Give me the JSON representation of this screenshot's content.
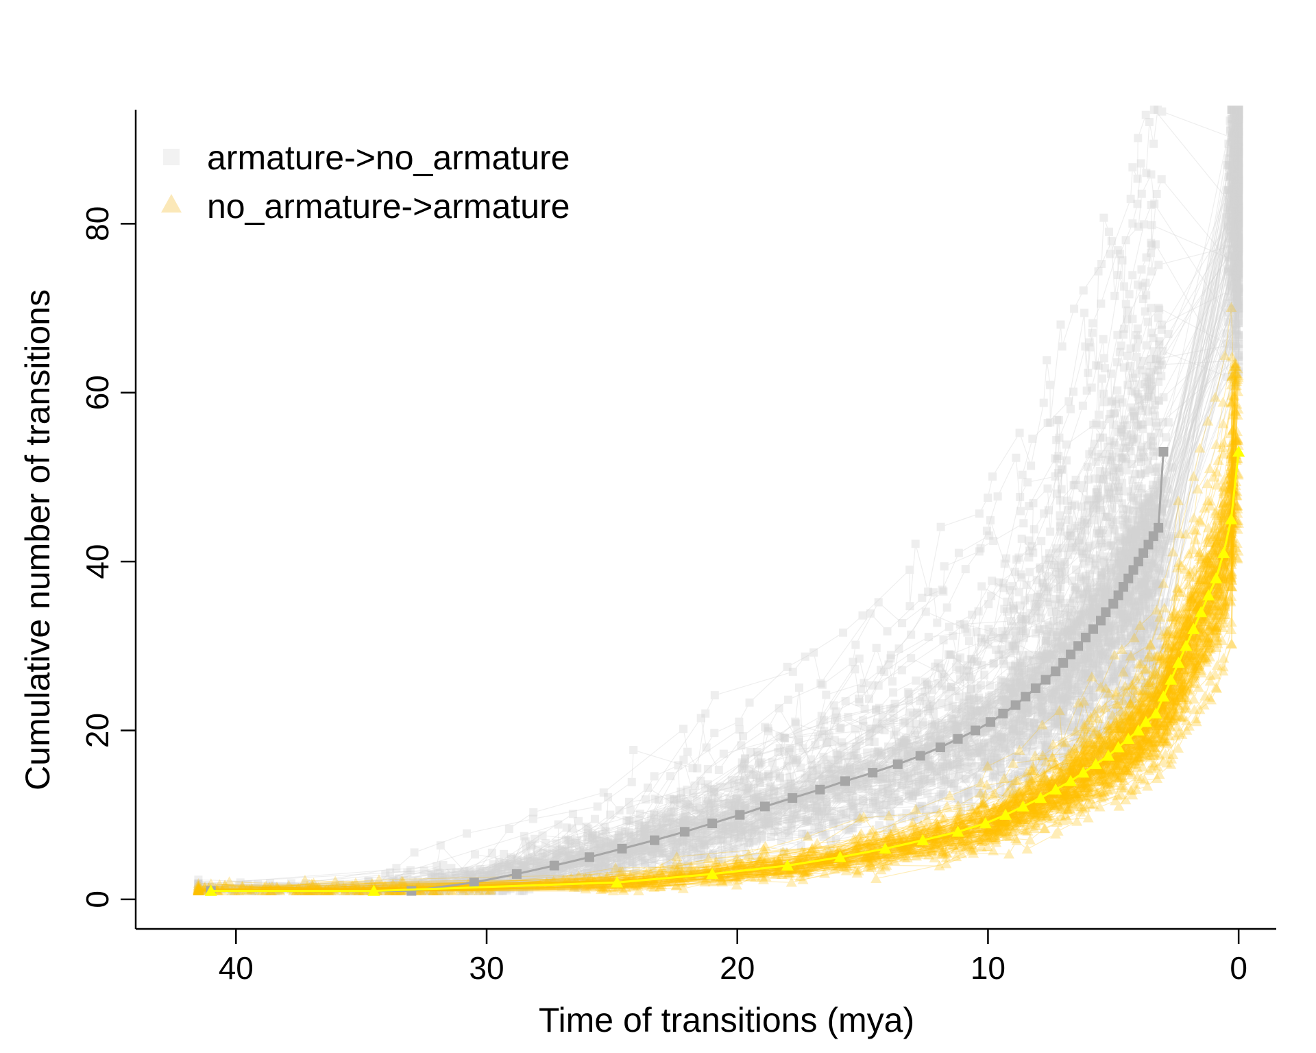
{
  "chart_data": {
    "type": "line",
    "title": "",
    "xlabel": "Time of transitions (mya)",
    "ylabel": "Cumulative number of transitions",
    "xlim": [
      44,
      -1.5
    ],
    "ylim": [
      -3.5,
      93.5
    ],
    "x_reversed": true,
    "x_ticks": [
      40,
      30,
      20,
      10,
      0
    ],
    "x_tick_labels": [
      "40",
      "30",
      "20",
      "10",
      "0"
    ],
    "y_ticks": [
      0,
      20,
      40,
      60,
      80
    ],
    "y_tick_labels": [
      "0",
      "20",
      "40",
      "60",
      "80"
    ],
    "grid": false,
    "legend": {
      "position": "top-left",
      "entries": [
        {
          "label": "armature->no_armature",
          "marker": "square",
          "color": "#f2f2f2"
        },
        {
          "label": "no_armature->armature",
          "marker": "triangle",
          "color": "#fbe8b8"
        }
      ]
    },
    "colors": {
      "gray_sim": "#d3d3d3",
      "gray_mean": "#a6a6a6",
      "yellow_sim": "#ffc000",
      "yellow_mean": "#ffff00"
    },
    "simulations_per_series": 100,
    "series": [
      {
        "name": "armature->no_armature",
        "marker": "square",
        "color": "#a6a6a6",
        "x": [
          41.0,
          33.0,
          30.5,
          28.8,
          27.3,
          25.9,
          24.6,
          23.3,
          22.1,
          21.0,
          19.9,
          18.9,
          17.8,
          16.7,
          15.7,
          14.6,
          13.6,
          12.7,
          11.9,
          11.2,
          10.5,
          9.9,
          9.4,
          8.9,
          8.5,
          8.1,
          7.7,
          7.3,
          7.0,
          6.7,
          6.4,
          6.1,
          5.8,
          5.5,
          5.3,
          5.0,
          4.8,
          4.6,
          4.4,
          4.2,
          4.0,
          3.8,
          3.6,
          3.4,
          3.2,
          3.0
        ],
        "y": [
          1,
          1,
          2,
          3,
          4,
          5,
          6,
          7,
          8,
          9,
          10,
          11,
          12,
          13,
          14,
          15,
          16,
          17,
          18,
          19,
          20,
          21,
          22,
          23,
          24,
          25,
          26,
          27,
          28,
          29,
          30,
          31,
          32,
          33,
          34,
          35,
          36,
          37,
          38,
          39,
          40,
          41,
          42,
          43,
          44,
          53
        ]
      },
      {
        "name": "no_armature->armature",
        "marker": "triangle",
        "color": "#ffff00",
        "x": [
          41.0,
          34.5,
          24.8,
          21.0,
          18.0,
          15.9,
          14.1,
          12.6,
          11.2,
          10.1,
          9.3,
          8.6,
          7.9,
          7.3,
          6.7,
          6.2,
          5.7,
          5.2,
          4.8,
          4.4,
          4.0,
          3.7,
          3.3,
          3.0,
          2.7,
          2.4,
          2.1,
          1.8,
          1.5,
          1.2,
          0.9,
          0.6,
          0.3,
          0.0
        ],
        "y": [
          1,
          1,
          2,
          3,
          4,
          5,
          6,
          7,
          8,
          9,
          10,
          11,
          12,
          13,
          14,
          15,
          16,
          17,
          18,
          19,
          20,
          21,
          22,
          24,
          26,
          28,
          30,
          32,
          34,
          36,
          38,
          41,
          45,
          53
        ]
      }
    ]
  }
}
